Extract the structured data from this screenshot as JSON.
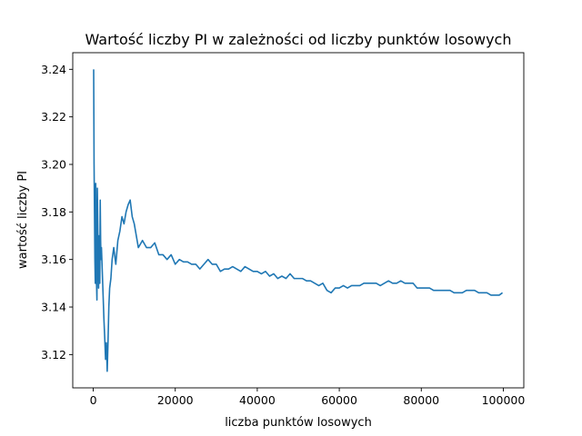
{
  "chart_data": {
    "type": "line",
    "title": "Wartość liczby PI w zależności od liczby punktów losowych",
    "xlabel": "liczba punktów losowych",
    "ylabel": "wartość liczby PI",
    "xlim": [
      -5000,
      105000
    ],
    "ylim": [
      3.106,
      3.247
    ],
    "x_ticks": [
      0,
      20000,
      40000,
      60000,
      80000,
      100000
    ],
    "x_tick_labels": [
      "0",
      "20000",
      "40000",
      "60000",
      "80000",
      "100000"
    ],
    "y_ticks": [
      3.12,
      3.14,
      3.16,
      3.18,
      3.2,
      3.22,
      3.24
    ],
    "y_tick_labels": [
      "3.12",
      "3.14",
      "3.16",
      "3.18",
      "3.20",
      "3.22",
      "3.24"
    ],
    "grid": false,
    "series": [
      {
        "color": "#1f77b4",
        "points": [
          [
            100,
            3.24
          ],
          [
            200,
            3.2
          ],
          [
            300,
            3.18
          ],
          [
            400,
            3.16
          ],
          [
            500,
            3.15
          ],
          [
            600,
            3.192
          ],
          [
            700,
            3.17
          ],
          [
            800,
            3.15
          ],
          [
            900,
            3.143
          ],
          [
            1000,
            3.19
          ],
          [
            1100,
            3.175
          ],
          [
            1200,
            3.16
          ],
          [
            1300,
            3.148
          ],
          [
            1400,
            3.17
          ],
          [
            1500,
            3.165
          ],
          [
            1600,
            3.15
          ],
          [
            1700,
            3.185
          ],
          [
            1800,
            3.168
          ],
          [
            1900,
            3.16
          ],
          [
            2000,
            3.165
          ],
          [
            2200,
            3.155
          ],
          [
            2400,
            3.145
          ],
          [
            2600,
            3.135
          ],
          [
            2800,
            3.127
          ],
          [
            3000,
            3.118
          ],
          [
            3200,
            3.125
          ],
          [
            3400,
            3.113
          ],
          [
            3600,
            3.125
          ],
          [
            3800,
            3.14
          ],
          [
            4000,
            3.148
          ],
          [
            4300,
            3.152
          ],
          [
            4600,
            3.16
          ],
          [
            5000,
            3.165
          ],
          [
            5500,
            3.158
          ],
          [
            6000,
            3.168
          ],
          [
            6500,
            3.172
          ],
          [
            7000,
            3.178
          ],
          [
            7500,
            3.175
          ],
          [
            8000,
            3.18
          ],
          [
            8500,
            3.183
          ],
          [
            9000,
            3.185
          ],
          [
            9500,
            3.178
          ],
          [
            10000,
            3.175
          ],
          [
            10500,
            3.17
          ],
          [
            11000,
            3.165
          ],
          [
            12000,
            3.168
          ],
          [
            13000,
            3.165
          ],
          [
            14000,
            3.165
          ],
          [
            15000,
            3.167
          ],
          [
            16000,
            3.162
          ],
          [
            17000,
            3.162
          ],
          [
            18000,
            3.16
          ],
          [
            19000,
            3.162
          ],
          [
            20000,
            3.158
          ],
          [
            21000,
            3.16
          ],
          [
            22000,
            3.159
          ],
          [
            23000,
            3.159
          ],
          [
            24000,
            3.158
          ],
          [
            25000,
            3.158
          ],
          [
            26000,
            3.156
          ],
          [
            27000,
            3.158
          ],
          [
            28000,
            3.16
          ],
          [
            29000,
            3.158
          ],
          [
            30000,
            3.158
          ],
          [
            31000,
            3.155
          ],
          [
            32000,
            3.156
          ],
          [
            33000,
            3.156
          ],
          [
            34000,
            3.157
          ],
          [
            35000,
            3.156
          ],
          [
            36000,
            3.155
          ],
          [
            37000,
            3.157
          ],
          [
            38000,
            3.156
          ],
          [
            39000,
            3.155
          ],
          [
            40000,
            3.155
          ],
          [
            41000,
            3.154
          ],
          [
            42000,
            3.155
          ],
          [
            43000,
            3.153
          ],
          [
            44000,
            3.154
          ],
          [
            45000,
            3.152
          ],
          [
            46000,
            3.153
          ],
          [
            47000,
            3.152
          ],
          [
            48000,
            3.154
          ],
          [
            49000,
            3.152
          ],
          [
            50000,
            3.152
          ],
          [
            51000,
            3.152
          ],
          [
            52000,
            3.151
          ],
          [
            53000,
            3.151
          ],
          [
            54000,
            3.15
          ],
          [
            55000,
            3.149
          ],
          [
            56000,
            3.15
          ],
          [
            57000,
            3.147
          ],
          [
            58000,
            3.146
          ],
          [
            59000,
            3.148
          ],
          [
            60000,
            3.148
          ],
          [
            61000,
            3.149
          ],
          [
            62000,
            3.148
          ],
          [
            63000,
            3.149
          ],
          [
            64000,
            3.149
          ],
          [
            65000,
            3.149
          ],
          [
            66000,
            3.15
          ],
          [
            67000,
            3.15
          ],
          [
            68000,
            3.15
          ],
          [
            69000,
            3.15
          ],
          [
            70000,
            3.149
          ],
          [
            71000,
            3.15
          ],
          [
            72000,
            3.151
          ],
          [
            73000,
            3.15
          ],
          [
            74000,
            3.15
          ],
          [
            75000,
            3.151
          ],
          [
            76000,
            3.15
          ],
          [
            77000,
            3.15
          ],
          [
            78000,
            3.15
          ],
          [
            79000,
            3.148
          ],
          [
            80000,
            3.148
          ],
          [
            81000,
            3.148
          ],
          [
            82000,
            3.148
          ],
          [
            83000,
            3.147
          ],
          [
            84000,
            3.147
          ],
          [
            85000,
            3.147
          ],
          [
            86000,
            3.147
          ],
          [
            87000,
            3.147
          ],
          [
            88000,
            3.146
          ],
          [
            89000,
            3.146
          ],
          [
            90000,
            3.146
          ],
          [
            91000,
            3.147
          ],
          [
            92000,
            3.147
          ],
          [
            93000,
            3.147
          ],
          [
            94000,
            3.146
          ],
          [
            95000,
            3.146
          ],
          [
            96000,
            3.146
          ],
          [
            97000,
            3.145
          ],
          [
            98000,
            3.145
          ],
          [
            99000,
            3.145
          ],
          [
            99800,
            3.146
          ]
        ]
      }
    ]
  }
}
